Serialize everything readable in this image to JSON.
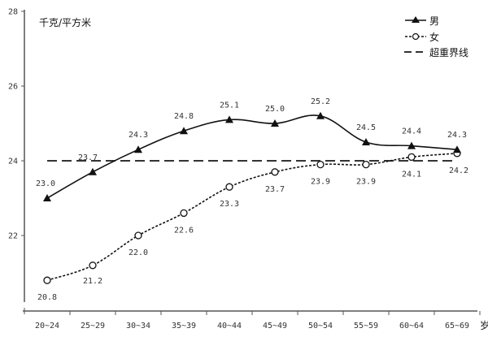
{
  "chart_data": {
    "type": "line",
    "title": "",
    "ylabel": "千克/平方米",
    "xlabel": "岁",
    "ylim": [
      20,
      28
    ],
    "yticks": [
      28,
      26,
      24,
      22
    ],
    "categories": [
      "20~24",
      "25~29",
      "30~34",
      "35~39",
      "40~44",
      "45~49",
      "50~54",
      "55~59",
      "60~64",
      "65~69"
    ],
    "series": [
      {
        "name": "男",
        "marker": "filled-triangle",
        "line": "solid",
        "values": [
          23.0,
          23.7,
          24.3,
          24.8,
          25.1,
          25.0,
          25.2,
          24.5,
          24.4,
          24.3
        ],
        "labels": [
          "23.0",
          "23.7",
          "24.3",
          "24.8",
          "25.1",
          "25.0",
          "25.2",
          "24.5",
          "24.4",
          "24.3"
        ]
      },
      {
        "name": "女",
        "marker": "hollow-circle",
        "line": "dotted",
        "values": [
          20.8,
          21.2,
          22.0,
          22.6,
          23.3,
          23.7,
          23.9,
          23.9,
          24.1,
          24.2
        ],
        "labels": [
          "20.8",
          "21.2",
          "22.0",
          "22.6",
          "23.3",
          "23.7",
          "23.9",
          "23.9",
          "24.1",
          "24.2"
        ]
      },
      {
        "name": "超重界线",
        "marker": "none",
        "line": "dashed",
        "values": [
          24,
          24,
          24,
          24,
          24,
          24,
          24,
          24,
          24,
          24
        ]
      }
    ],
    "legend": {
      "position": "top-right",
      "entries": [
        "男",
        "女",
        "超重界线"
      ]
    },
    "grid": false,
    "colors": {
      "axis": "#555555",
      "line": "#111111",
      "text": "#333333"
    }
  }
}
